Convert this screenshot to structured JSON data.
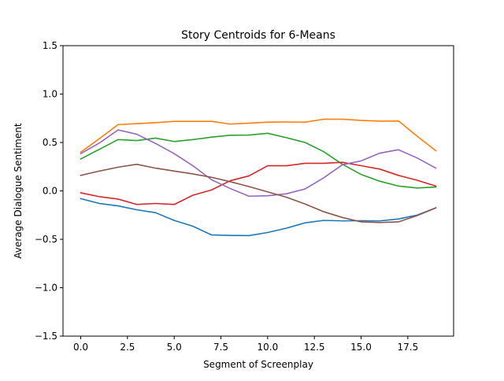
{
  "chart_data": {
    "type": "line",
    "title": "Story Centroids for 6-Means",
    "xlabel": "Segment of Screenplay",
    "ylabel": "Average Dialogue Sentiment",
    "xlim": [
      -0.95,
      19.95
    ],
    "ylim": [
      -1.5,
      1.5
    ],
    "xticks": [
      0,
      2.5,
      5,
      7.5,
      10,
      12.5,
      15,
      17.5
    ],
    "xtick_labels": [
      "0.0",
      "2.5",
      "5.0",
      "7.5",
      "10.0",
      "12.5",
      "15.0",
      "17.5"
    ],
    "yticks": [
      -1.5,
      -1.0,
      -0.5,
      0.0,
      0.5,
      1.0,
      1.5
    ],
    "ytick_labels": [
      "−1.5",
      "−1.0",
      "−0.5",
      "0.0",
      "0.5",
      "1.0",
      "1.5"
    ],
    "grid": false,
    "x": [
      0,
      1,
      2,
      3,
      4,
      5,
      6,
      7,
      8,
      9,
      10,
      11,
      12,
      13,
      14,
      15,
      16,
      17,
      18,
      19
    ],
    "series": [
      {
        "color": "#1f77b4",
        "values": [
          -0.08,
          -0.13,
          -0.155,
          -0.195,
          -0.225,
          -0.305,
          -0.365,
          -0.455,
          -0.46,
          -0.462,
          -0.43,
          -0.385,
          -0.33,
          -0.305,
          -0.31,
          -0.308,
          -0.31,
          -0.29,
          -0.25,
          -0.175
        ]
      },
      {
        "color": "#ff7f0e",
        "values": [
          0.4,
          0.54,
          0.685,
          0.695,
          0.705,
          0.718,
          0.718,
          0.718,
          0.69,
          0.7,
          0.71,
          0.712,
          0.71,
          0.74,
          0.74,
          0.728,
          0.72,
          0.722,
          0.565,
          0.415
        ]
      },
      {
        "color": "#2ca02c",
        "values": [
          0.33,
          0.43,
          0.53,
          0.52,
          0.545,
          0.51,
          0.53,
          0.555,
          0.575,
          0.577,
          0.595,
          0.55,
          0.5,
          0.405,
          0.275,
          0.17,
          0.1,
          0.05,
          0.03,
          0.04
        ]
      },
      {
        "color": "#d62728",
        "values": [
          -0.02,
          -0.06,
          -0.085,
          -0.14,
          -0.13,
          -0.14,
          -0.045,
          0.01,
          0.105,
          0.155,
          0.26,
          0.26,
          0.285,
          0.285,
          0.295,
          0.26,
          0.225,
          0.16,
          0.11,
          0.05
        ]
      },
      {
        "color": "#9467bd",
        "values": [
          0.385,
          0.495,
          0.63,
          0.585,
          0.49,
          0.385,
          0.26,
          0.115,
          0.025,
          -0.055,
          -0.05,
          -0.03,
          0.02,
          0.135,
          0.27,
          0.31,
          0.39,
          0.425,
          0.34,
          0.235
        ]
      },
      {
        "color": "#8c564b",
        "values": [
          0.16,
          0.205,
          0.245,
          0.275,
          0.235,
          0.205,
          0.175,
          0.14,
          0.095,
          0.045,
          -0.01,
          -0.065,
          -0.135,
          -0.215,
          -0.275,
          -0.32,
          -0.327,
          -0.32,
          -0.255,
          -0.175
        ]
      }
    ]
  }
}
